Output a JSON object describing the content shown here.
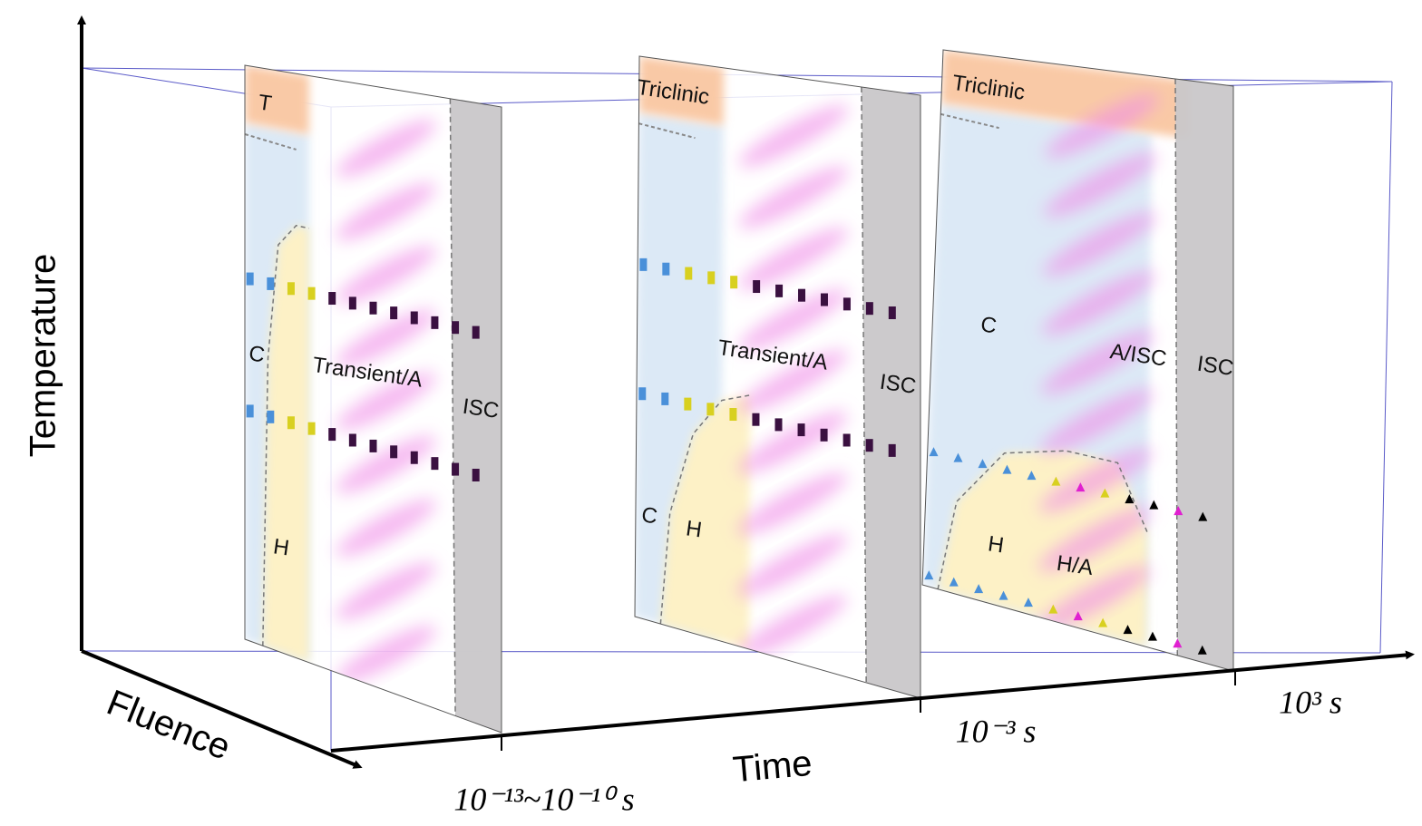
{
  "axes": {
    "y_label": "Temperature",
    "x_label": "Time",
    "z_label": "Fluence",
    "time_ticks": [
      "10⁻¹³~10⁻¹⁰ s",
      "10⁻³ s",
      "10³ s"
    ]
  },
  "panels": [
    {
      "labels": [
        "T",
        "C",
        "H",
        "Transient/A",
        "ISC"
      ]
    },
    {
      "labels": [
        "Triclinic",
        "C",
        "H",
        "Transient/A",
        "ISC"
      ]
    },
    {
      "labels": [
        "Triclinic",
        "C",
        "H",
        "H/A",
        "A/ISC",
        "ISC"
      ]
    }
  ]
}
